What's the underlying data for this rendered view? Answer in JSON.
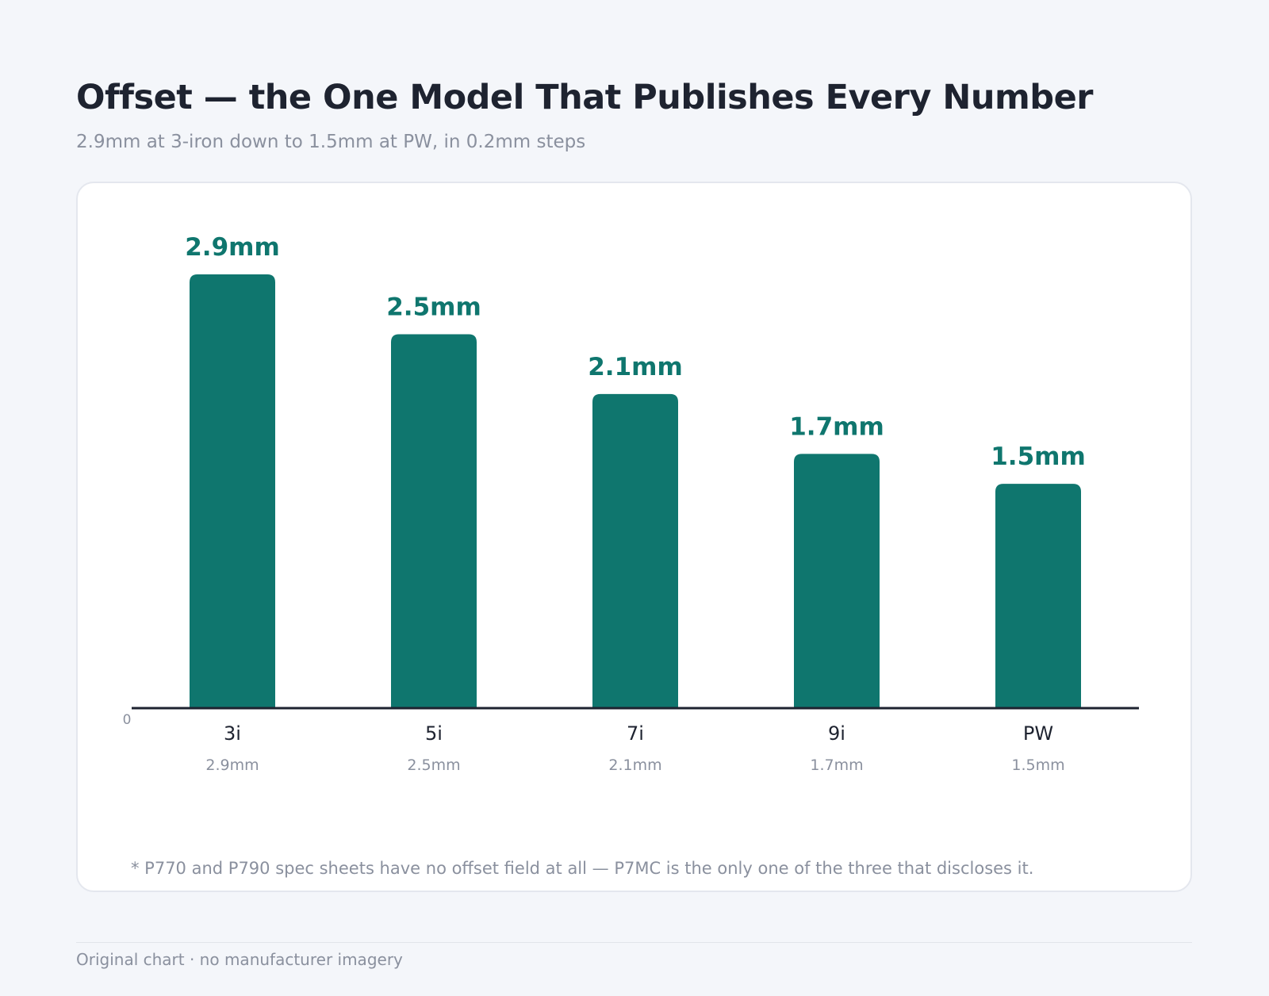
{
  "header": {
    "title": "Offset — the One Model That Publishes Every Number",
    "subtitle": "2.9mm at 3-iron down to 1.5mm at PW, in 0.2mm steps"
  },
  "chart_data": {
    "type": "bar",
    "title": "Offset — the One Model That Publishes Every Number",
    "subtitle": "2.9mm at 3-iron down to 1.5mm at PW, in 0.2mm steps",
    "categories": [
      "3i",
      "5i",
      "7i",
      "9i",
      "PW"
    ],
    "values": [
      2.9,
      2.5,
      2.1,
      1.7,
      1.5
    ],
    "value_labels": [
      "2.9mm",
      "2.5mm",
      "2.1mm",
      "1.7mm",
      "1.5mm"
    ],
    "sub_labels": [
      "2.9mm",
      "2.5mm",
      "2.1mm",
      "1.7mm",
      "1.5mm"
    ],
    "unit": "mm",
    "xlabel": "",
    "ylabel": "",
    "ylim": [
      0,
      2.9
    ],
    "y_ticks": [
      "0"
    ],
    "grid": false,
    "bar_color": "#0f766e",
    "label_color": "#0f766e"
  },
  "footnote": "* P770 and P790 spec sheets have no offset field at all — P7MC is the only one of the three that discloses it.",
  "footer": "Original chart · no manufacturer imagery"
}
